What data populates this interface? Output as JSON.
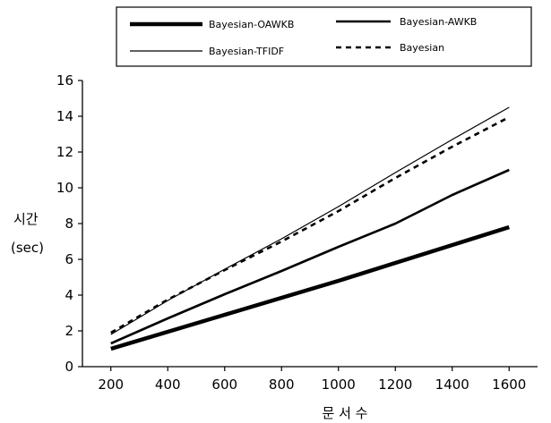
{
  "chart_data": {
    "type": "line",
    "title": "",
    "xlabel": "문 서 수",
    "ylabel": "시간",
    "ylabel_unit": "(sec)",
    "x": [
      200,
      400,
      600,
      800,
      1000,
      1200,
      1400,
      1600
    ],
    "xlim": [
      100,
      1700
    ],
    "ylim": [
      0,
      16
    ],
    "x_ticks": [
      200,
      400,
      600,
      800,
      1000,
      1200,
      1400,
      1600
    ],
    "y_ticks": [
      0,
      2,
      4,
      6,
      8,
      10,
      12,
      14,
      16
    ],
    "grid": false,
    "legend_position": "top",
    "series": [
      {
        "name": "Bayesian-OAWKB",
        "style": "thick-solid",
        "color": "#000000",
        "values": [
          1.0,
          1.95,
          2.9,
          3.85,
          4.8,
          5.8,
          6.8,
          7.8
        ]
      },
      {
        "name": "Bayesian-AWKB",
        "style": "solid",
        "color": "#000000",
        "values": [
          1.3,
          2.7,
          4.05,
          5.35,
          6.7,
          8.0,
          9.6,
          11.0
        ]
      },
      {
        "name": "Bayesian-TFIDF",
        "style": "thin-solid",
        "color": "#000000",
        "values": [
          1.8,
          3.7,
          5.45,
          7.15,
          8.95,
          10.85,
          12.7,
          14.5
        ]
      },
      {
        "name": "Bayesian",
        "style": "dashed",
        "color": "#000000",
        "values": [
          1.9,
          3.75,
          5.4,
          7.0,
          8.7,
          10.55,
          12.3,
          13.95
        ]
      }
    ]
  }
}
